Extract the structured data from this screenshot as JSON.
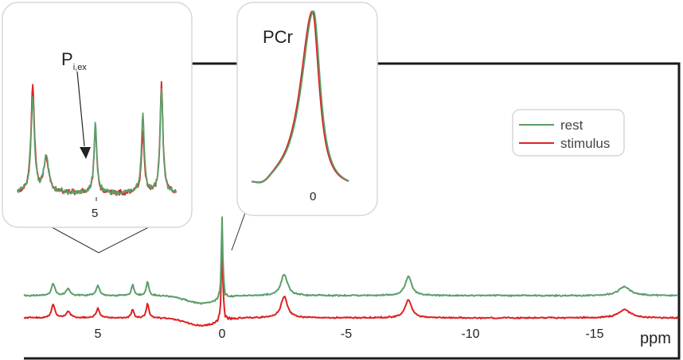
{
  "chart_data": {
    "type": "line",
    "x_unit": "ppm",
    "xlim": [
      7.5,
      -18.5
    ],
    "x_reversed": true,
    "x_ticks": [
      "5",
      "0",
      "-5",
      "-10",
      "-15"
    ],
    "x_tick_values": [
      5,
      0,
      -5,
      -10,
      -15
    ],
    "peaks_ppm": [
      6.8,
      6.2,
      5.0,
      3.6,
      3.0,
      0,
      -2.5,
      -7.5,
      -16.2
    ],
    "series": [
      {
        "name": "rest",
        "color": "#5b9e69",
        "offset": 1.0,
        "peak_heights": [
          0.55,
          0.32,
          0.45,
          0.5,
          0.62,
          3.7,
          0.95,
          0.85,
          0.4
        ]
      },
      {
        "name": "stimulus",
        "color": "#dd2222",
        "offset": 0.0,
        "peak_heights": [
          0.62,
          0.3,
          0.42,
          0.38,
          0.65,
          3.7,
          0.95,
          0.82,
          0.38
        ]
      }
    ],
    "legend": {
      "position": "top-right",
      "entries": [
        "rest",
        "stimulus"
      ]
    },
    "insets": [
      {
        "id": "pi-region",
        "tick": "5",
        "annotation_main": "P",
        "annotation_sub": "i,ex"
      },
      {
        "id": "pcr-region",
        "title": "PCr",
        "tick": "0"
      }
    ]
  }
}
